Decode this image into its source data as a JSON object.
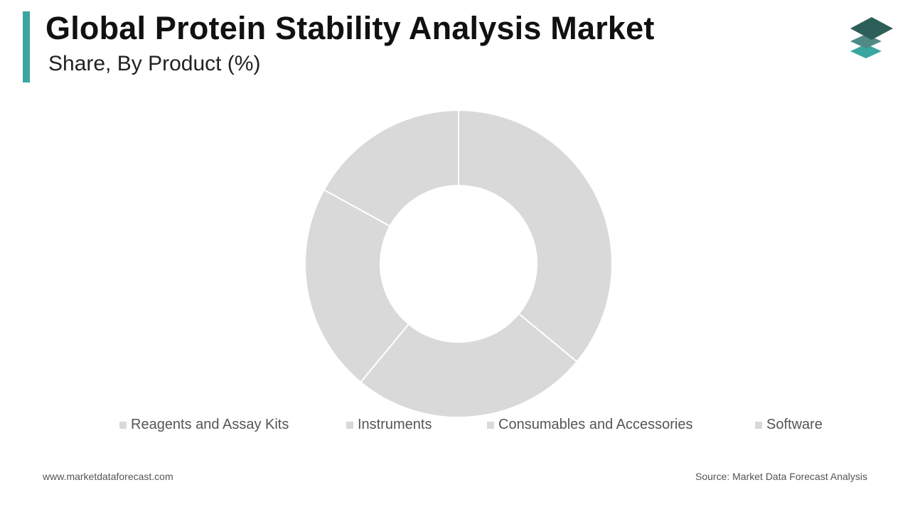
{
  "header": {
    "title": "Global Protein Stability Analysis Market",
    "subtitle": "Share, By Product (%)"
  },
  "footer": {
    "website": "www.marketdataforecast.com",
    "source": "Source: Market Data Forecast Analysis"
  },
  "logo": {
    "icon": "stacked-layers-icon",
    "colors": [
      "#2e5e5a",
      "#4f8a85",
      "#3aa6a0"
    ]
  },
  "colors": {
    "accent": "#3aa6a0",
    "slice": "#d9d9d9",
    "separator": "#ffffff",
    "legend_swatch": "#d9d9d9"
  },
  "chart_data": {
    "type": "pie",
    "variant": "donut",
    "title": "Global Protein Stability Analysis Market",
    "subtitle": "Share, By Product (%)",
    "categories": [
      "Reagents and Assay Kits",
      "Instruments",
      "Consumables and Accessories",
      "Software"
    ],
    "values": [
      36,
      25,
      22,
      17
    ],
    "legend_position": "bottom",
    "data_labels": false
  }
}
